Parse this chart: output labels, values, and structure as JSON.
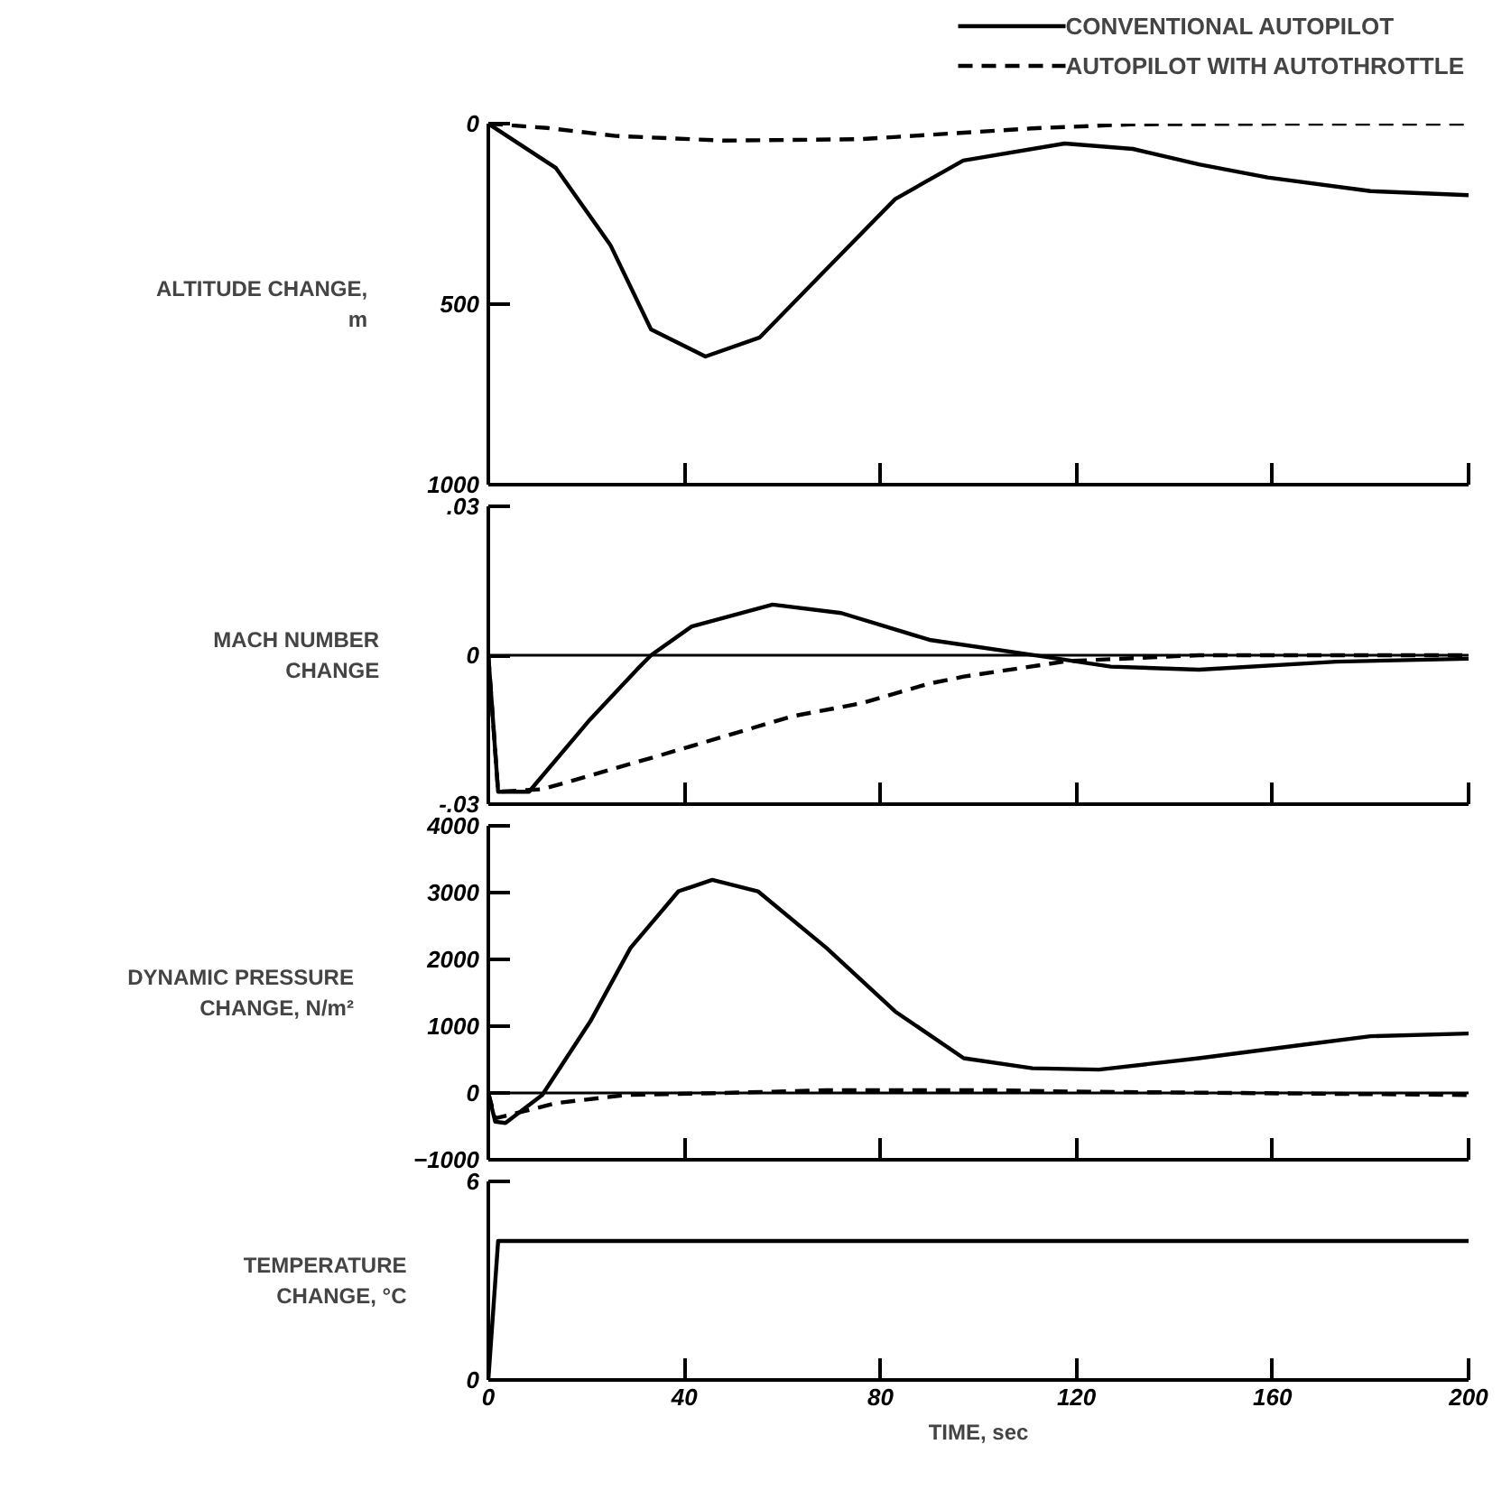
{
  "chart_data": [
    {
      "type": "line",
      "ylabel": "ALTITUDE CHANGE,\nm",
      "xlim": [
        0,
        200
      ],
      "xticks": [
        0,
        40,
        80,
        120,
        160,
        200
      ],
      "ylim": [
        1000,
        0
      ],
      "yticks": [
        0,
        500,
        1000
      ],
      "tick_labels": "y",
      "legend": "top right",
      "series": [
        {
          "name": "CONVENTIONAL AUTOPILOT",
          "color": "#000000",
          "line_style": "solid",
          "x": [
            0,
            13.8,
            24.9,
            33.2,
            44.3,
            55.4,
            69.2,
            83,
            96.9,
            117.6,
            131.5,
            145,
            159,
            180,
            200
          ],
          "values": [
            0,
            123,
            336,
            570,
            645,
            592,
            400,
            209,
            102,
            55,
            70,
            113,
            149,
            187,
            198
          ]
        },
        {
          "name": "AUTOPILOT WITH AUTOTHROTTLE",
          "color": "#000000",
          "line_style": "dashed",
          "x": [
            0,
            12,
            26,
            48,
            76,
            111,
            131,
            166,
            200
          ],
          "values": [
            0,
            12,
            34,
            47,
            43,
            13,
            2,
            0,
            0
          ]
        }
      ]
    },
    {
      "type": "line",
      "ylabel": "MACH NUMBER\nCHANGE",
      "xlim": [
        0,
        200
      ],
      "xticks": [
        0,
        40,
        80,
        120,
        160,
        200
      ],
      "ylim": [
        -0.03,
        0.03
      ],
      "yticks": [
        {
          "value": -0.03,
          "label": "-.03"
        },
        0,
        {
          "value": 0.03,
          "label": ".03"
        }
      ],
      "tick_labels": "y",
      "ref_lines": [
        {
          "axis": "y",
          "value": 0,
          "color": "#000000"
        }
      ],
      "series": [
        {
          "color": "#000000",
          "line_style": "solid",
          "x": [
            0,
            2,
            8.3,
            20.8,
            30.4,
            33.2,
            41.5,
            58,
            72,
            90,
            113.5,
            127,
            145,
            173,
            200
          ],
          "values": [
            0,
            -0.0275,
            -0.0275,
            -0.0129,
            -0.0028,
            0,
            0.0058,
            0.0102,
            0.0085,
            0.0031,
            -0.0003,
            -0.0023,
            -0.0029,
            -0.0013,
            -0.0007
          ]
        },
        {
          "color": "#000000",
          "line_style": "dashed",
          "x": [
            0,
            2,
            11,
            34.6,
            62,
            76,
            90,
            97,
            118,
            145,
            200
          ],
          "values": [
            0,
            -0.0275,
            -0.027,
            -0.0203,
            -0.0123,
            -0.0097,
            -0.0057,
            -0.0043,
            -0.0012,
            0,
            0
          ]
        }
      ]
    },
    {
      "type": "line",
      "ylabel": "DYNAMIC PRESSURE\nCHANGE, N/m²",
      "xlim": [
        0,
        200
      ],
      "xticks": [
        0,
        40,
        80,
        120,
        160,
        200
      ],
      "ylim": [
        -1000,
        4000
      ],
      "yticks": [
        -1000,
        0,
        1000,
        2000,
        3000,
        4000
      ],
      "tick_labels": "y",
      "ref_lines": [
        {
          "axis": "y",
          "value": 0,
          "color": "#000000"
        }
      ],
      "series": [
        {
          "color": "#000000",
          "line_style": "solid",
          "x": [
            0,
            1.4,
            3.5,
            11,
            20.8,
            29,
            38.8,
            45.7,
            55,
            69,
            83,
            97,
            111,
            124.6,
            145,
            166,
            180,
            200
          ],
          "values": [
            0,
            -430,
            -450,
            -30,
            1070,
            2170,
            3020,
            3190,
            3020,
            2170,
            1220,
            520,
            370,
            350,
            520,
            720,
            850,
            890
          ]
        },
        {
          "color": "#000000",
          "line_style": "dashed",
          "x": [
            0,
            1.4,
            7,
            14,
            28,
            48,
            69,
            104,
            120,
            200
          ],
          "values": [
            0,
            -380,
            -280,
            -150,
            -30,
            0,
            40,
            40,
            20,
            -30
          ]
        }
      ]
    },
    {
      "type": "line",
      "ylabel": "TEMPERATURE\nCHANGE, °C",
      "xlabel": "TIME, sec",
      "xlim": [
        0,
        200
      ],
      "xticks": [
        0,
        40,
        80,
        120,
        160,
        200
      ],
      "ylim": [
        0,
        6
      ],
      "yticks": [
        0,
        6
      ],
      "series": [
        {
          "color": "#000000",
          "line_style": "solid",
          "x": [
            0,
            2,
            200
          ],
          "values": [
            0,
            4.2,
            4.2
          ]
        }
      ]
    }
  ]
}
